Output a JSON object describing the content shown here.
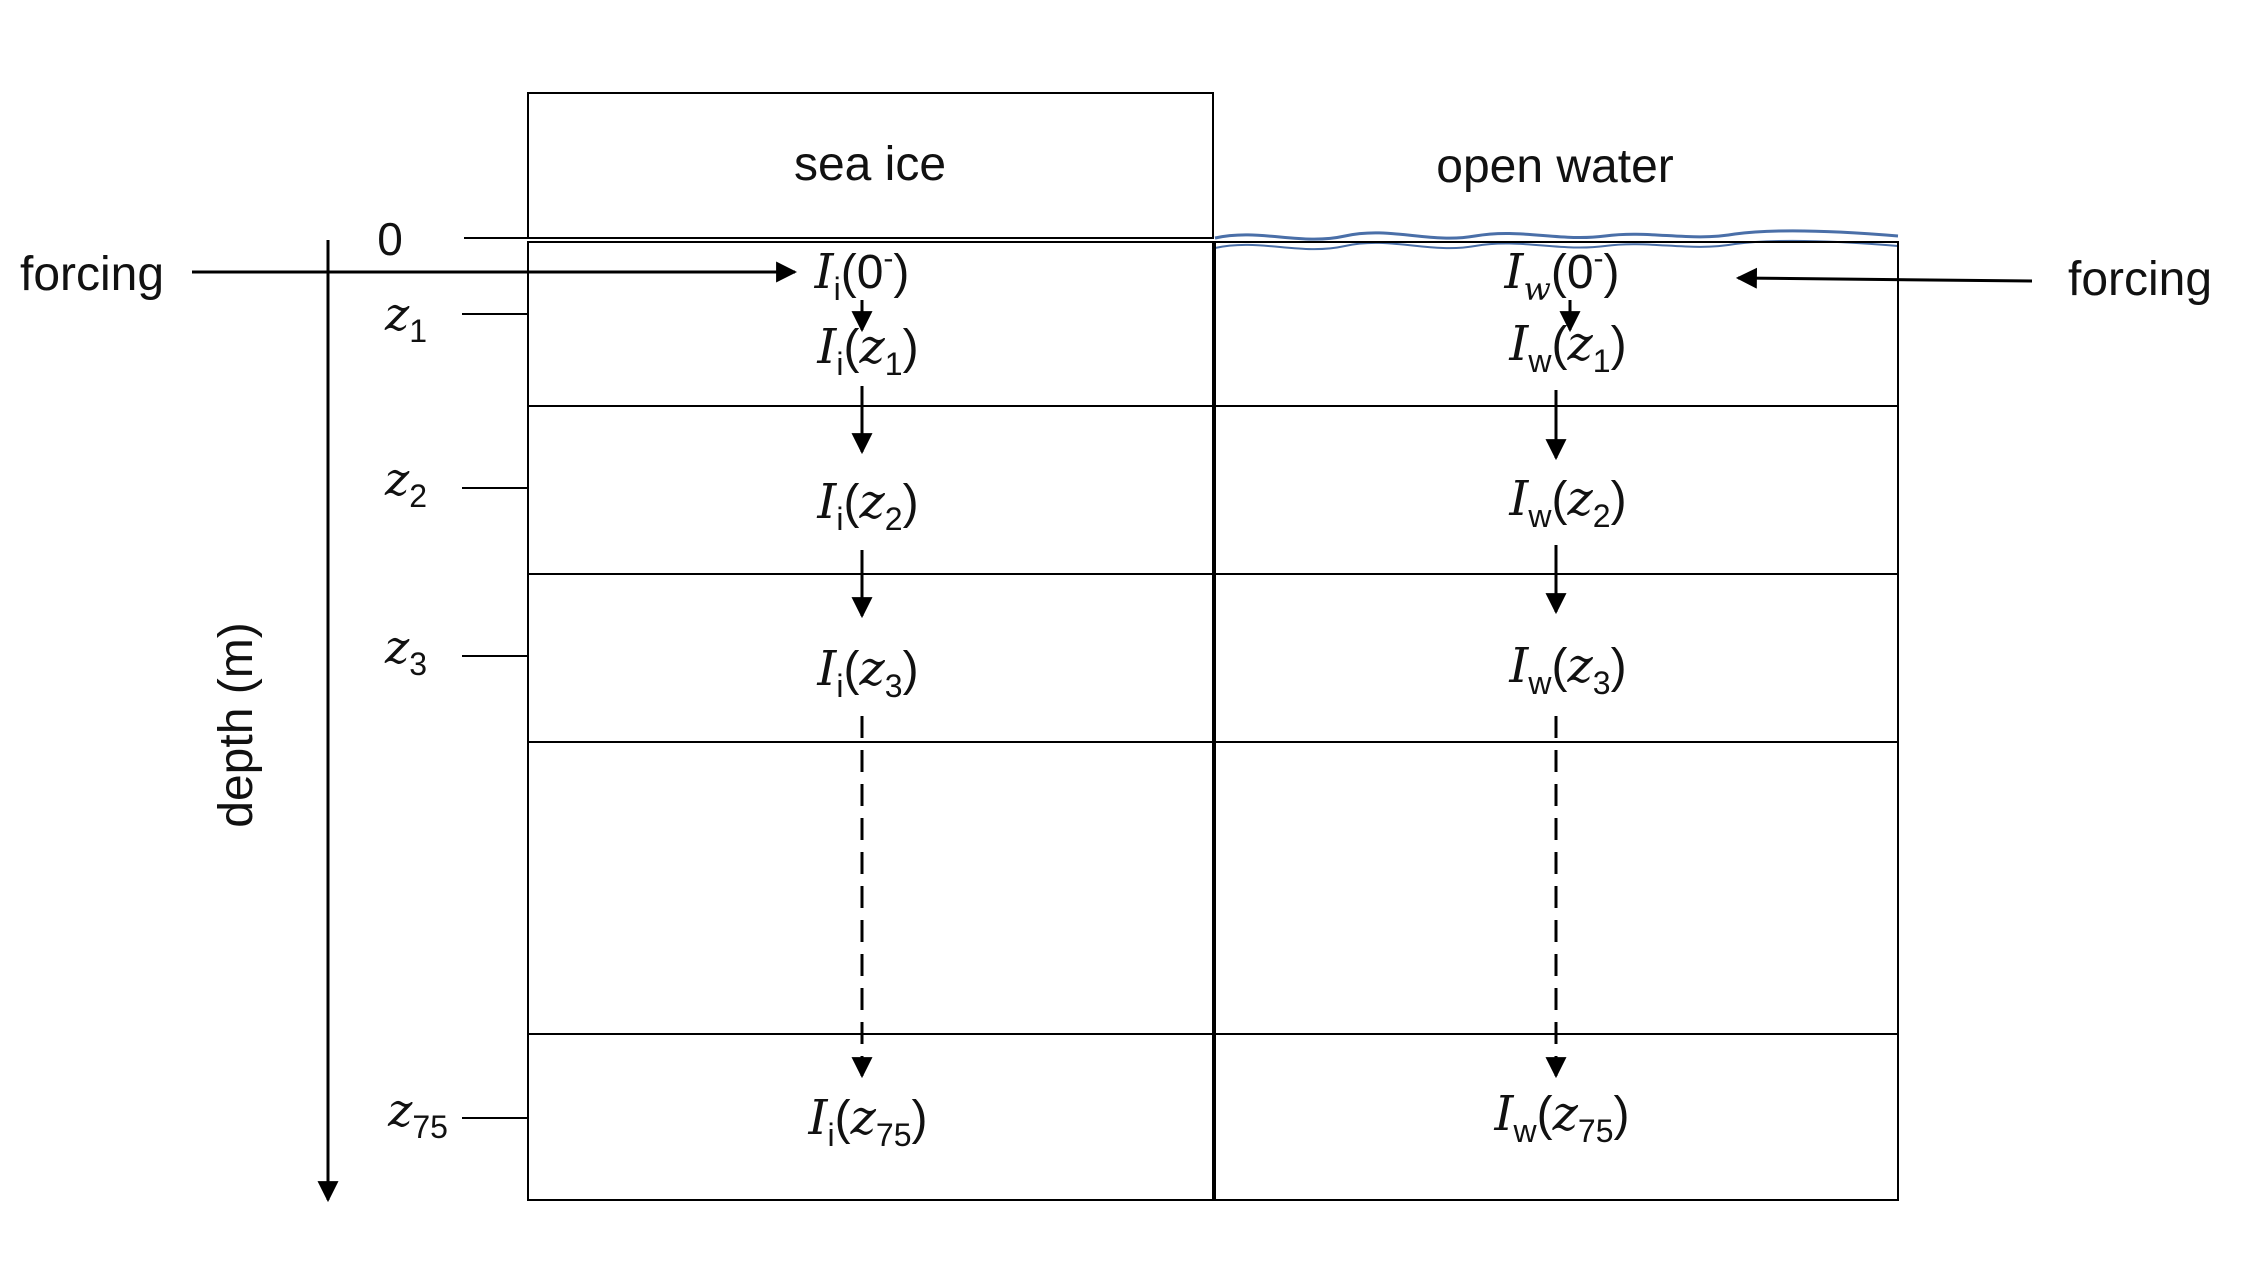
{
  "columns": {
    "left": {
      "header": "sea ice",
      "symbol": "I",
      "sub": "i"
    },
    "right": {
      "header": "open water",
      "symbol": "I",
      "sub": "w"
    }
  },
  "forcing_left": "forcing",
  "forcing_right": "forcing",
  "depth_axis_label": "depth (m)",
  "surface_depth": "0",
  "depth_levels": [
    {
      "var": "z",
      "sub": "1"
    },
    {
      "var": "z",
      "sub": "2"
    },
    {
      "var": "z",
      "sub": "3"
    },
    {
      "var": "z",
      "sub": "75"
    }
  ],
  "surface_arg": {
    "base": "0",
    "sup": "-"
  },
  "colors": {
    "water_surface": "#4a6fa8",
    "lines": "#000000"
  }
}
